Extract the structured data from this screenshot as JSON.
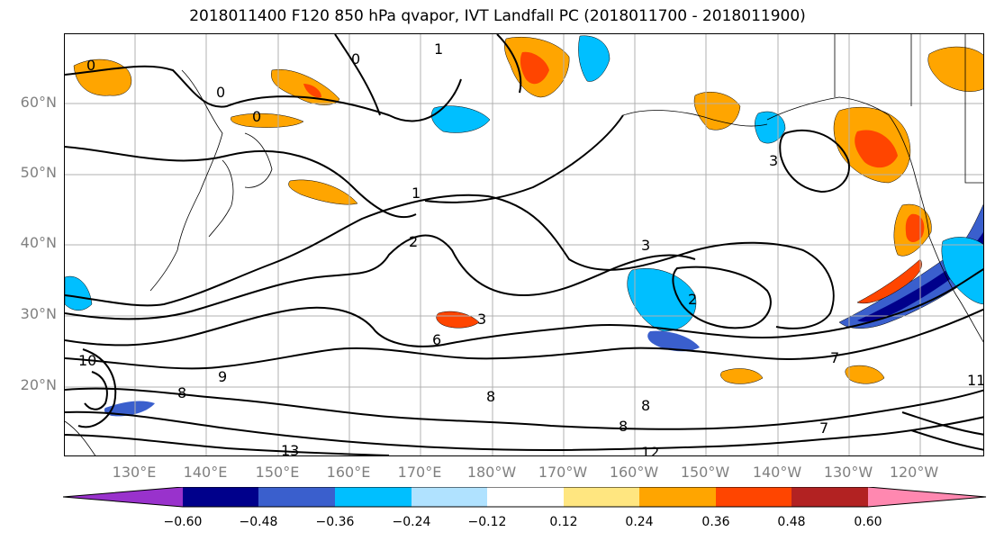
{
  "title": "2018011400 F120 850 hPa qvapor, IVT Landfall PC (2018011700 - 2018011900)",
  "lat_labels": [
    "60°N",
    "50°N",
    "40°N",
    "30°N",
    "20°N"
  ],
  "lon_labels": [
    "130°E",
    "140°E",
    "150°E",
    "160°E",
    "170°E",
    "180°W",
    "170°W",
    "160°W",
    "150°W",
    "140°W",
    "130°W",
    "120°W"
  ],
  "contour_labels": [
    "0",
    "0",
    "0",
    "0",
    "1",
    "1",
    "2",
    "3",
    "3",
    "3",
    "2",
    "6",
    "10",
    "9",
    "8",
    "8",
    "8",
    "8",
    "13",
    "12",
    "7",
    "7",
    "11"
  ],
  "colorbar": {
    "colors": [
      "#9932cc",
      "#00008b",
      "#3a5fcd",
      "#00bfff",
      "#b0e2ff",
      "#ffffff",
      "#ffe680",
      "#ffa500",
      "#ff4500",
      "#b22222",
      "#ff88b0"
    ],
    "tick_labels": [
      "−0.60",
      "−0.48",
      "−0.36",
      "−0.24",
      "−0.12",
      "0.12",
      "0.24",
      "0.36",
      "0.48",
      "0.60"
    ]
  },
  "map": {
    "lon_range": [
      "125°E",
      "115°W"
    ],
    "lat_range": [
      "10°N",
      "70°N"
    ],
    "field": "850 hPa qvapor",
    "overlay": "IVT Landfall PC"
  }
}
